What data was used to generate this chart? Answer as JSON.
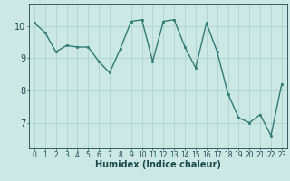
{
  "x": [
    0,
    1,
    2,
    3,
    4,
    5,
    6,
    7,
    8,
    9,
    10,
    11,
    12,
    13,
    14,
    15,
    16,
    17,
    18,
    19,
    20,
    21,
    22,
    23
  ],
  "y": [
    10.1,
    9.8,
    9.2,
    9.4,
    9.35,
    9.35,
    8.9,
    8.55,
    9.3,
    10.15,
    10.2,
    8.9,
    10.15,
    10.2,
    9.35,
    8.7,
    10.1,
    9.2,
    7.9,
    7.15,
    7.0,
    7.25,
    6.6,
    8.2
  ],
  "line_color": "#2e7d6e",
  "marker": "s",
  "markersize": 2,
  "linewidth": 1.0,
  "bg_color": "#cce8e5",
  "grid_color": "#aacfcc",
  "xlabel": "Humidex (Indice chaleur)",
  "xlabel_fontsize": 7,
  "xlabel_color": "#1a4a4a",
  "tick_color": "#1a4a4a",
  "ytick_fontsize": 7,
  "xtick_fontsize": 5.5,
  "ylim": [
    6.2,
    10.7
  ],
  "yticks": [
    7,
    8,
    9,
    10
  ],
  "xlim": [
    -0.5,
    23.5
  ],
  "xticks": [
    0,
    1,
    2,
    3,
    4,
    5,
    6,
    7,
    8,
    9,
    10,
    11,
    12,
    13,
    14,
    15,
    16,
    17,
    18,
    19,
    20,
    21,
    22,
    23
  ]
}
